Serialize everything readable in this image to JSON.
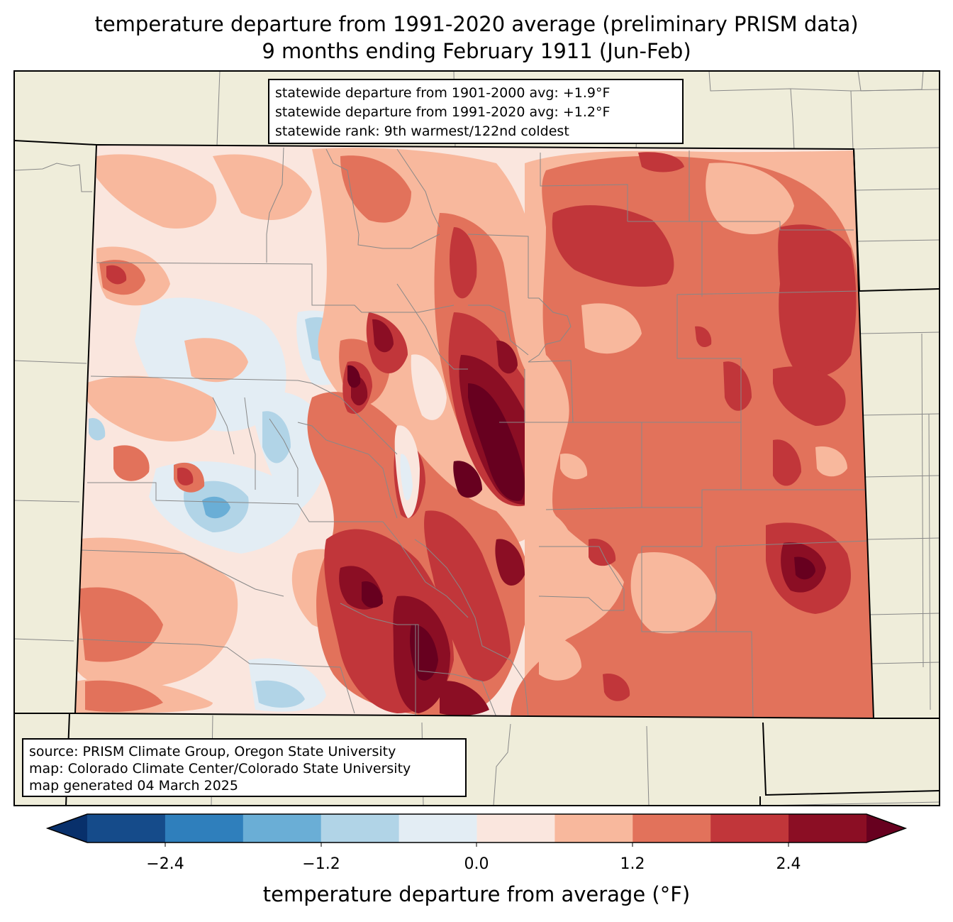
{
  "title": {
    "line1": "temperature departure from 1991-2020 average (preliminary PRISM data)",
    "line2": "9 months ending February 1911 (Jun-Feb)"
  },
  "stats": {
    "line1": "statewide departure from 1901-2000 avg: +1.9°F",
    "line2": "statewide departure from 1991-2020 avg: +1.2°F",
    "line3": "statewide rank: 9th warmest/122nd coldest"
  },
  "source": {
    "line1": "source: PRISM Climate Group, Oregon State University",
    "line2": "map: Colorado Climate Center/Colorado State University",
    "line3": "map generated 04 March 2025"
  },
  "colorbar": {
    "label": "temperature departure from average (°F)",
    "ticks": [
      "−2.4",
      "−1.2",
      "0.0",
      "1.2",
      "2.4"
    ],
    "colors": [
      "#08306b",
      "#154b8a",
      "#2f7fbc",
      "#6aaed6",
      "#b1d4e7",
      "#e3edf4",
      "#fae6de",
      "#f8b89d",
      "#e2725b",
      "#c1363a",
      "#8b0e24",
      "#67001f"
    ]
  },
  "map_colors": {
    "background": "#efedda",
    "state_border": "#000000",
    "county_border": "#888888"
  }
}
